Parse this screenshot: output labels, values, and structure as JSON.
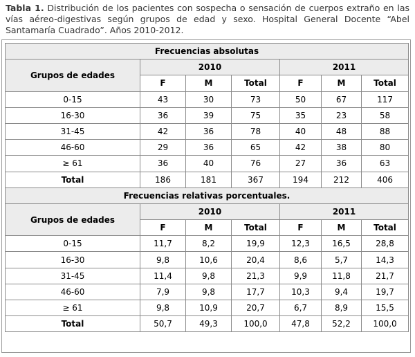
{
  "caption": {
    "label": "Tabla 1.",
    "text": " Distribución de los pacientes con sospecha o sensación de cuerpos extraño en las vías aéreo-digestivas según grupos de edad y sexo. Hospital General Docente “Abel Santamaría Cuadrado”. Años 2010-2012."
  },
  "absolutas": {
    "title": "Frecuencias absolutas",
    "group_header": "Grupos de edades",
    "years": [
      "2010",
      "2011"
    ],
    "subheaders": [
      "F",
      "M",
      "Total",
      "F",
      "M",
      "Total"
    ],
    "rows": [
      {
        "group": "0-15",
        "values": [
          "43",
          "30",
          "73",
          "50",
          "67",
          "117"
        ]
      },
      {
        "group": "16-30",
        "values": [
          "36",
          "39",
          "75",
          "35",
          "23",
          "58"
        ]
      },
      {
        "group": "31-45",
        "values": [
          "42",
          "36",
          "78",
          "40",
          "48",
          "88"
        ]
      },
      {
        "group": "46-60",
        "values": [
          "29",
          "36",
          "65",
          "42",
          "38",
          "80"
        ]
      },
      {
        "group": "≥ 61",
        "values": [
          "36",
          "40",
          "76",
          "27",
          "36",
          "63"
        ]
      }
    ],
    "total": {
      "group": "Total",
      "values": [
        "186",
        "181",
        "367",
        "194",
        "212",
        "406"
      ]
    }
  },
  "relativas": {
    "title": "Frecuencias relativas porcentuales.",
    "group_header": "Grupos de edades",
    "years": [
      "2010",
      "2011"
    ],
    "subheaders": [
      "F",
      "M",
      "Total",
      "F",
      "M",
      "Total"
    ],
    "rows": [
      {
        "group": "0-15",
        "values": [
          "11,7",
          "8,2",
          "19,9",
          "12,3",
          "16,5",
          "28,8"
        ]
      },
      {
        "group": "16-30",
        "values": [
          "9,8",
          "10,6",
          "20,4",
          "8,6",
          "5,7",
          "14,3"
        ]
      },
      {
        "group": "31-45",
        "values": [
          "11,4",
          "9,8",
          "21,3",
          "9,9",
          "11,8",
          "21,7"
        ]
      },
      {
        "group": "46-60",
        "values": [
          "7,9",
          "9,8",
          "17,7",
          "10,3",
          "9,4",
          "19,7"
        ]
      },
      {
        "group": "≥ 61",
        "values": [
          "9,8",
          "10,9",
          "20,7",
          "6,7",
          "8,9",
          "15,5"
        ]
      }
    ],
    "total": {
      "group": "Total",
      "values": [
        "50,7",
        "49,3",
        "100,0",
        "47,8",
        "52,2",
        "100,0"
      ]
    }
  }
}
